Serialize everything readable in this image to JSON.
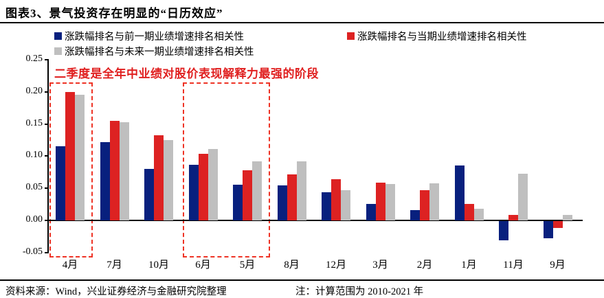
{
  "header": {
    "title": "图表3、景气投资存在明显的“日历效应”"
  },
  "legend": {
    "items": [
      {
        "label": "涨跌幅排名与前一期业绩增速排名相关性",
        "color": "#08207E",
        "icon": "square-swatch-blue"
      },
      {
        "label": "涨跌幅排名与当期业绩增速排名相关性",
        "color": "#DD2222",
        "icon": "square-swatch-red"
      },
      {
        "label": "涨跌幅排名与未来一期业绩增速排名相关性",
        "color": "#BFBFBF",
        "icon": "square-swatch-gray"
      }
    ]
  },
  "annotation": {
    "text": "二季度是全年中业绩对股价表现解释力最强的阶段",
    "color": "#E02020"
  },
  "chart_data": {
    "type": "bar",
    "title": "景气投资存在明显的“日历效应”",
    "xlabel": "",
    "ylabel": "",
    "categories": [
      "4月",
      "7月",
      "10月",
      "6月",
      "5月",
      "8月",
      "12月",
      "3月",
      "2月",
      "1月",
      "11月",
      "9月"
    ],
    "series": [
      {
        "name": "涨跌幅排名与前一期业绩增速排名相关性",
        "color": "#08207E",
        "values": [
          0.115,
          0.122,
          0.08,
          0.087,
          0.056,
          0.054,
          0.044,
          0.026,
          0.016,
          0.086,
          -0.03,
          -0.027
        ]
      },
      {
        "name": "涨跌幅排名与当期业绩增速排名相关性",
        "color": "#DD2222",
        "values": [
          0.2,
          0.155,
          0.132,
          0.104,
          0.078,
          0.072,
          0.064,
          0.059,
          0.047,
          0.026,
          0.009,
          -0.011
        ]
      },
      {
        "name": "涨跌幅排名与未来一期业绩增速排名相关性",
        "color": "#BFBFBF",
        "values": [
          0.195,
          0.153,
          0.125,
          0.111,
          0.092,
          0.092,
          0.047,
          0.057,
          0.058,
          0.018,
          0.073,
          0.009
        ]
      }
    ],
    "ylim": [
      -0.05,
      0.25
    ],
    "yticks": [
      "0.25",
      "0.20",
      "0.15",
      "0.10",
      "0.05",
      "0.00",
      "-0.05"
    ],
    "grid": false,
    "legend_position": "top",
    "highlight_groups": [
      [
        0
      ],
      [
        3,
        4
      ]
    ],
    "highlight_color": "#EE3224"
  },
  "footer": {
    "source": "资料来源：Wind，兴业证券经济与金融研究院整理",
    "note": "注：计算范围为 2010-2021 年"
  }
}
